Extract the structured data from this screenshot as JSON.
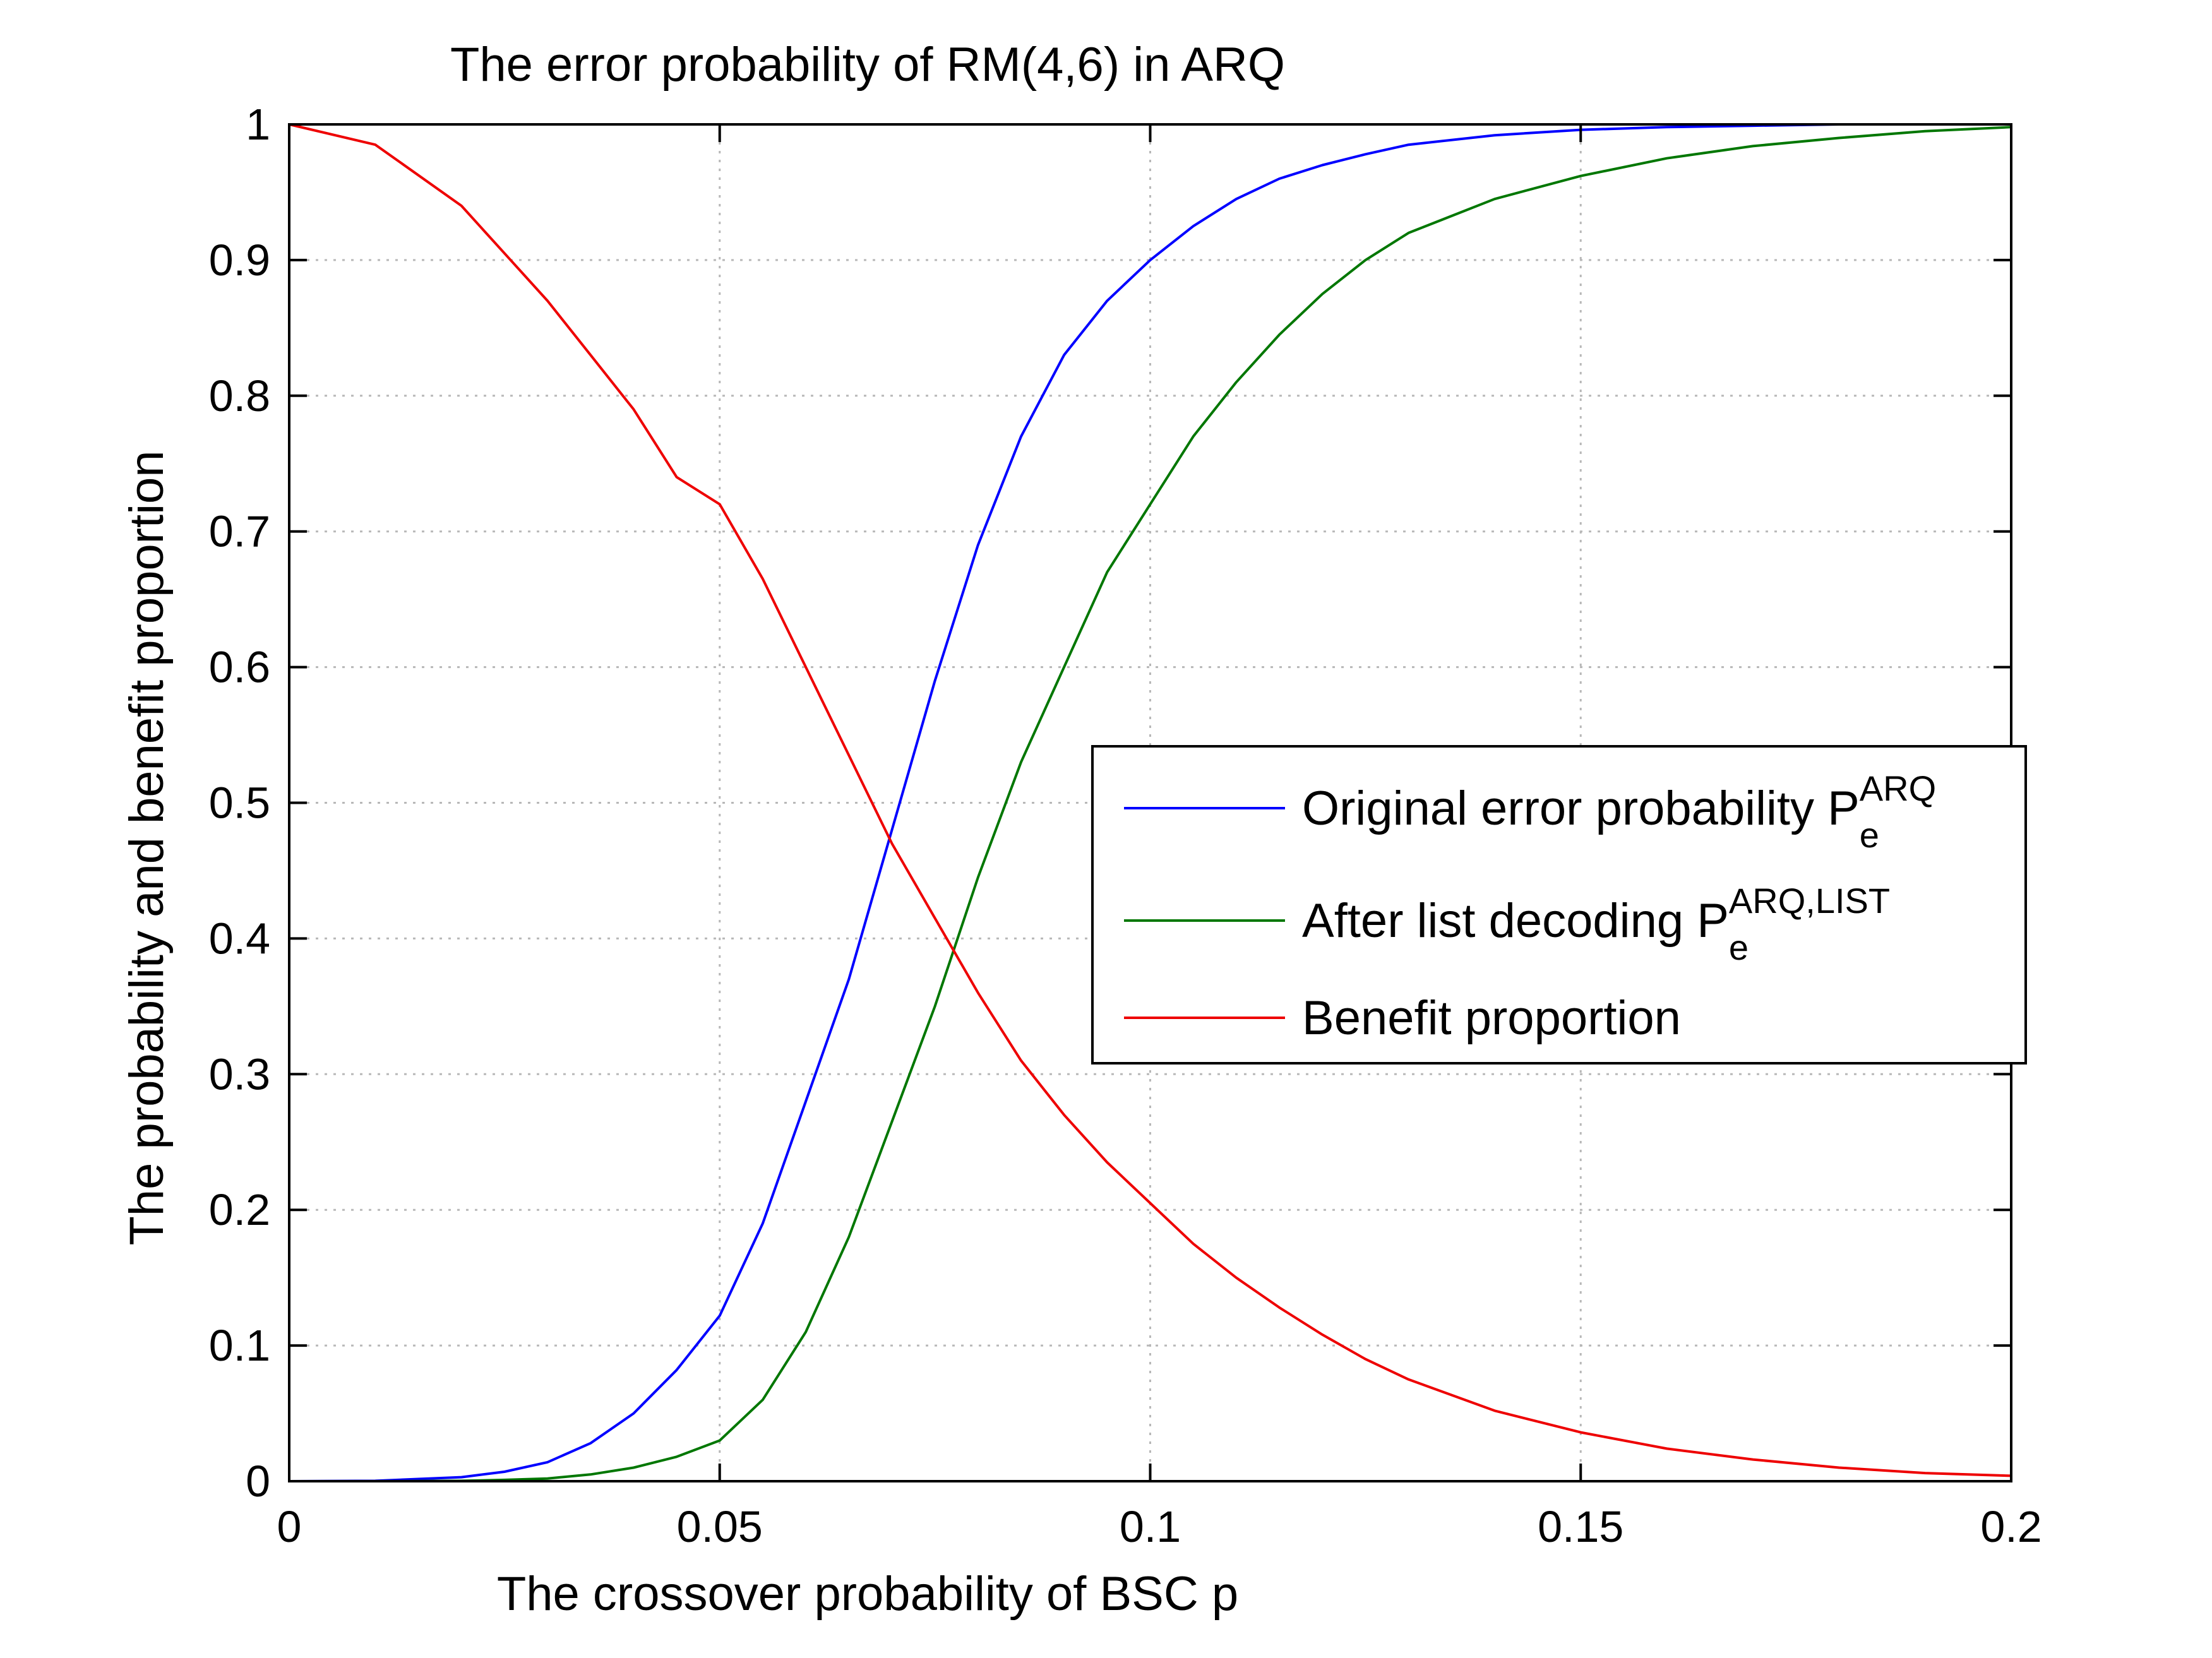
{
  "chart_data": {
    "type": "line",
    "title": "The error probability of RM(4,6) in ARQ",
    "xlabel": "The crossover probability of BSC p",
    "ylabel": "The probability and benefit proportion",
    "xlim": [
      0,
      0.2
    ],
    "ylim": [
      0,
      1
    ],
    "grid": true,
    "legend_position": "center-right",
    "x_ticks": [
      {
        "value": 0,
        "label": "0"
      },
      {
        "value": 0.05,
        "label": "0.05"
      },
      {
        "value": 0.1,
        "label": "0.1"
      },
      {
        "value": 0.15,
        "label": "0.15"
      },
      {
        "value": 0.2,
        "label": "0.2"
      }
    ],
    "y_ticks": [
      {
        "value": 0,
        "label": "0"
      },
      {
        "value": 0.1,
        "label": "0.1"
      },
      {
        "value": 0.2,
        "label": "0.2"
      },
      {
        "value": 0.3,
        "label": "0.3"
      },
      {
        "value": 0.4,
        "label": "0.4"
      },
      {
        "value": 0.5,
        "label": "0.5"
      },
      {
        "value": 0.6,
        "label": "0.6"
      },
      {
        "value": 0.7,
        "label": "0.7"
      },
      {
        "value": 0.8,
        "label": "0.8"
      },
      {
        "value": 0.9,
        "label": "0.9"
      },
      {
        "value": 1,
        "label": "1"
      }
    ],
    "x": [
      0,
      0.01,
      0.02,
      0.025,
      0.03,
      0.035,
      0.04,
      0.045,
      0.05,
      0.055,
      0.06,
      0.065,
      0.07,
      0.075,
      0.08,
      0.085,
      0.09,
      0.095,
      0.1,
      0.105,
      0.11,
      0.115,
      0.12,
      0.125,
      0.13,
      0.14,
      0.15,
      0.16,
      0.17,
      0.18,
      0.19,
      0.2
    ],
    "series": [
      {
        "name": "Original error probability",
        "legend_main": "Original error probability P",
        "legend_sub": "e",
        "legend_sup": "ARQ",
        "color": "#0000ff",
        "values": [
          0,
          0.0003,
          0.003,
          0.007,
          0.014,
          0.028,
          0.05,
          0.082,
          0.122,
          0.19,
          0.28,
          0.37,
          0.48,
          0.59,
          0.69,
          0.77,
          0.83,
          0.87,
          0.9,
          0.925,
          0.945,
          0.96,
          0.97,
          0.978,
          0.985,
          0.992,
          0.996,
          0.998,
          0.999,
          1,
          1,
          1
        ]
      },
      {
        "name": "After list decoding",
        "legend_main": "After list decoding P",
        "legend_sub": "e",
        "legend_sup": "ARQ,LIST",
        "color": "#007700",
        "values": [
          0,
          0,
          0.0003,
          0.001,
          0.002,
          0.005,
          0.01,
          0.018,
          0.03,
          0.06,
          0.11,
          0.18,
          0.265,
          0.35,
          0.445,
          0.53,
          0.6,
          0.67,
          0.72,
          0.77,
          0.81,
          0.845,
          0.875,
          0.9,
          0.92,
          0.945,
          0.962,
          0.975,
          0.984,
          0.99,
          0.995,
          0.998
        ]
      },
      {
        "name": "Benefit proportion",
        "legend_main": "Benefit proportion",
        "legend_sub": "",
        "legend_sup": "",
        "color": "#ee0000",
        "values": [
          1,
          0.985,
          0.94,
          0.905,
          0.87,
          0.83,
          0.79,
          0.74,
          0.72,
          0.665,
          0.6,
          0.535,
          0.47,
          0.415,
          0.36,
          0.31,
          0.27,
          0.235,
          0.205,
          0.175,
          0.15,
          0.128,
          0.108,
          0.09,
          0.075,
          0.052,
          0.036,
          0.024,
          0.016,
          0.01,
          0.006,
          0.004
        ]
      }
    ]
  }
}
